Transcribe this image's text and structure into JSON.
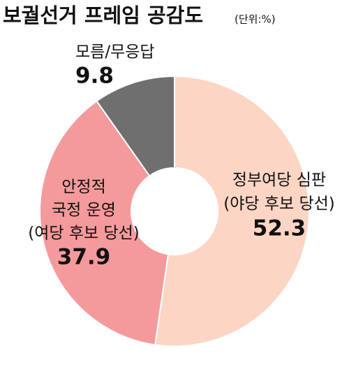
{
  "chart_data": {
    "type": "donut",
    "title": "보궐선거 프레임 공감도",
    "subtitle": "(단위:%)",
    "categories": [
      [
        "정부여당 심판",
        "(야당 후보 당선)"
      ],
      [
        "안정적",
        "국정 운영",
        "(여당 후보 당선)"
      ],
      [
        "모름/무응답"
      ]
    ],
    "values": [
      52.3,
      37.9,
      9.8
    ],
    "colors": [
      "#fdd5c4",
      "#f59a9c",
      "#6f6f6f"
    ]
  }
}
